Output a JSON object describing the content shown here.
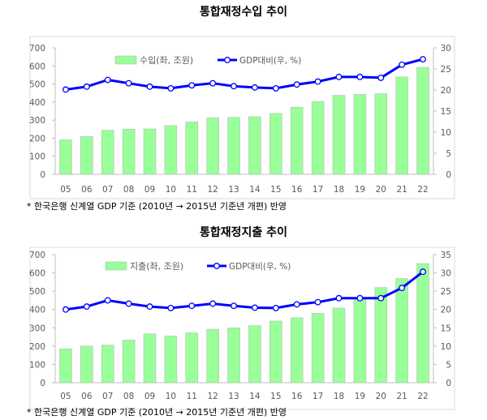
{
  "colors": {
    "bar": "#99ff99",
    "bar_edge": "#bbbbbb",
    "line": "#0000ff",
    "marker_fill": "#ffffff",
    "axis_text": "#595959",
    "frame": "#d9d9d9"
  },
  "chart_data": [
    {
      "type": "bar+line",
      "title": "통합재정수입 추이",
      "categories": [
        "05",
        "06",
        "07",
        "08",
        "09",
        "10",
        "11",
        "12",
        "13",
        "14",
        "15",
        "16",
        "17",
        "18",
        "19",
        "20",
        "21",
        "22"
      ],
      "series": [
        {
          "name": "수입(좌, 조원)",
          "type": "bar",
          "axis": "left",
          "values": [
            191,
            209,
            244,
            250,
            251,
            270,
            290,
            312,
            315,
            319,
            337,
            371,
            403,
            437,
            442,
            446,
            539,
            592
          ]
        },
        {
          "name": "GDP대비(우, %)",
          "type": "line",
          "axis": "right",
          "values": [
            20.1,
            20.8,
            22.4,
            21.6,
            20.8,
            20.4,
            21.1,
            21.6,
            20.9,
            20.6,
            20.4,
            21.3,
            22.0,
            23.1,
            23.1,
            22.9,
            26.0,
            27.3
          ]
        }
      ],
      "ylim_left": [
        0,
        700
      ],
      "yticks_left": [
        0,
        100,
        200,
        300,
        400,
        500,
        600,
        700
      ],
      "ylim_right": [
        0,
        30
      ],
      "yticks_right": [
        0,
        5,
        10,
        15,
        20,
        25,
        30
      ],
      "grid": false,
      "legend": "top",
      "footnote": "* 한국은행 신계열 GDP 기준 (2010년 → 2015년 기준년 개편) 반영"
    },
    {
      "type": "bar+line",
      "title": "통합재정지출 추이",
      "categories": [
        "05",
        "06",
        "07",
        "08",
        "09",
        "10",
        "11",
        "12",
        "13",
        "14",
        "15",
        "16",
        "17",
        "18",
        "19",
        "20",
        "21",
        "22"
      ],
      "series": [
        {
          "name": "지출(좌, 조원)",
          "type": "bar",
          "axis": "left",
          "values": [
            185,
            200,
            205,
            233,
            267,
            255,
            272,
            292,
            300,
            312,
            337,
            355,
            379,
            408,
            463,
            520,
            569,
            651
          ]
        },
        {
          "name": "GDP대비(우, %)",
          "type": "line",
          "axis": "right",
          "values": [
            20.0,
            20.8,
            22.5,
            21.6,
            20.8,
            20.4,
            21.0,
            21.6,
            21.0,
            20.5,
            20.4,
            21.4,
            22.0,
            23.1,
            23.1,
            23.1,
            25.9,
            30.3
          ]
        }
      ],
      "ylim_left": [
        0,
        700
      ],
      "yticks_left": [
        0,
        100,
        200,
        300,
        400,
        500,
        600,
        700
      ],
      "ylim_right": [
        0,
        35
      ],
      "yticks_right": [
        0,
        5,
        10,
        15,
        20,
        25,
        30,
        35
      ],
      "grid": false,
      "legend": "top",
      "footnote": "* 한국은행 신계열 GDP 기준 (2010년 → 2015년 기준년 개편) 반영"
    }
  ]
}
